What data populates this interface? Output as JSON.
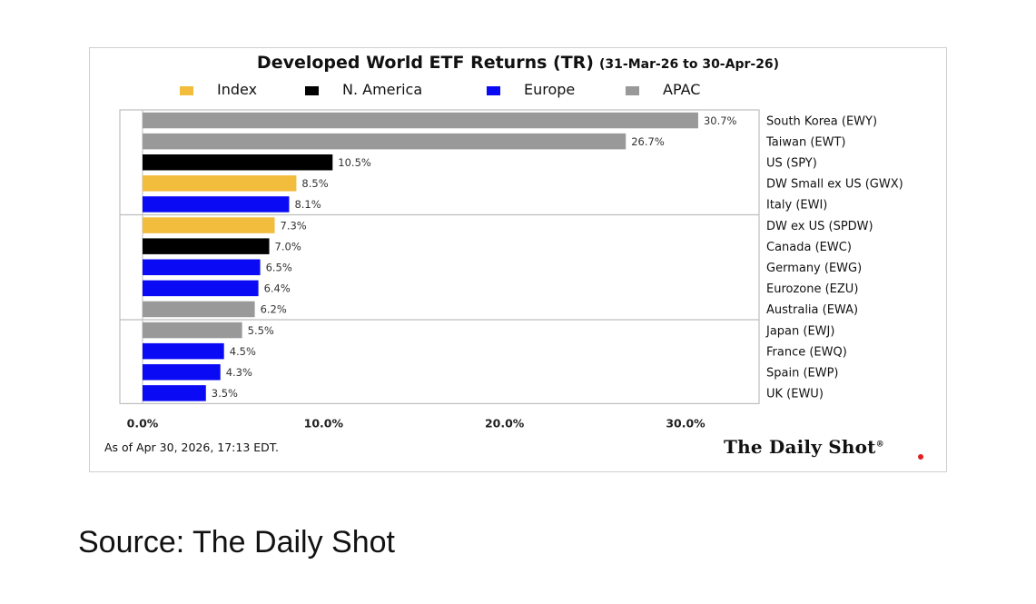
{
  "figure": {
    "title": "Developed World ETF Returns (TR)",
    "date_range": "(31-Mar-26 to 30-Apr-26)",
    "as_of": "As of Apr 30, 2026, 17:13 EDT.",
    "brand": "The Daily Shot",
    "brand_mark": "®",
    "source_caption": "Source: The Daily Shot"
  },
  "legend": [
    {
      "label": "Index",
      "color": "#f2bc3c"
    },
    {
      "label": "N. America",
      "color": "#000000"
    },
    {
      "label": "Europe",
      "color": "#0a0af5"
    },
    {
      "label": "APAC",
      "color": "#999999"
    }
  ],
  "chart_data": {
    "type": "bar",
    "orientation": "horizontal",
    "title": "Developed World ETF Returns (TR)",
    "subtitle": "(31-Mar-26 to 30-Apr-26)",
    "categories": [
      "South Korea (EWY)",
      "Taiwan (EWT)",
      "US (SPY)",
      "DW Small ex US (GWX)",
      "Italy (EWI)",
      "DW ex US (SPDW)",
      "Canada (EWC)",
      "Germany (EWG)",
      "Eurozone (EZU)",
      "Australia (EWA)",
      "Japan (EWJ)",
      "France (EWQ)",
      "Spain (EWP)",
      "UK (EWU)"
    ],
    "values": [
      30.7,
      26.7,
      10.5,
      8.5,
      8.1,
      7.3,
      7.0,
      6.5,
      6.4,
      6.2,
      5.5,
      4.5,
      4.3,
      3.5
    ],
    "data_labels": [
      "30.7%",
      "26.7%",
      "10.5%",
      "8.5%",
      "8.1%",
      "7.3%",
      "7.0%",
      "6.5%",
      "6.4%",
      "6.2%",
      "5.5%",
      "4.5%",
      "4.3%",
      "3.5%"
    ],
    "groups": [
      "APAC",
      "APAC",
      "N. America",
      "Index",
      "Europe",
      "Index",
      "N. America",
      "Europe",
      "Europe",
      "APAC",
      "APAC",
      "Europe",
      "Europe",
      "Europe"
    ],
    "xlim": [
      0,
      34
    ],
    "xticks": [
      0,
      10,
      20,
      30
    ],
    "xtick_labels": [
      "0.0%",
      "10.0%",
      "20.0%",
      "30.0%"
    ],
    "row_separators_after": [
      4,
      9
    ],
    "legend_position": "top",
    "grid": false
  }
}
